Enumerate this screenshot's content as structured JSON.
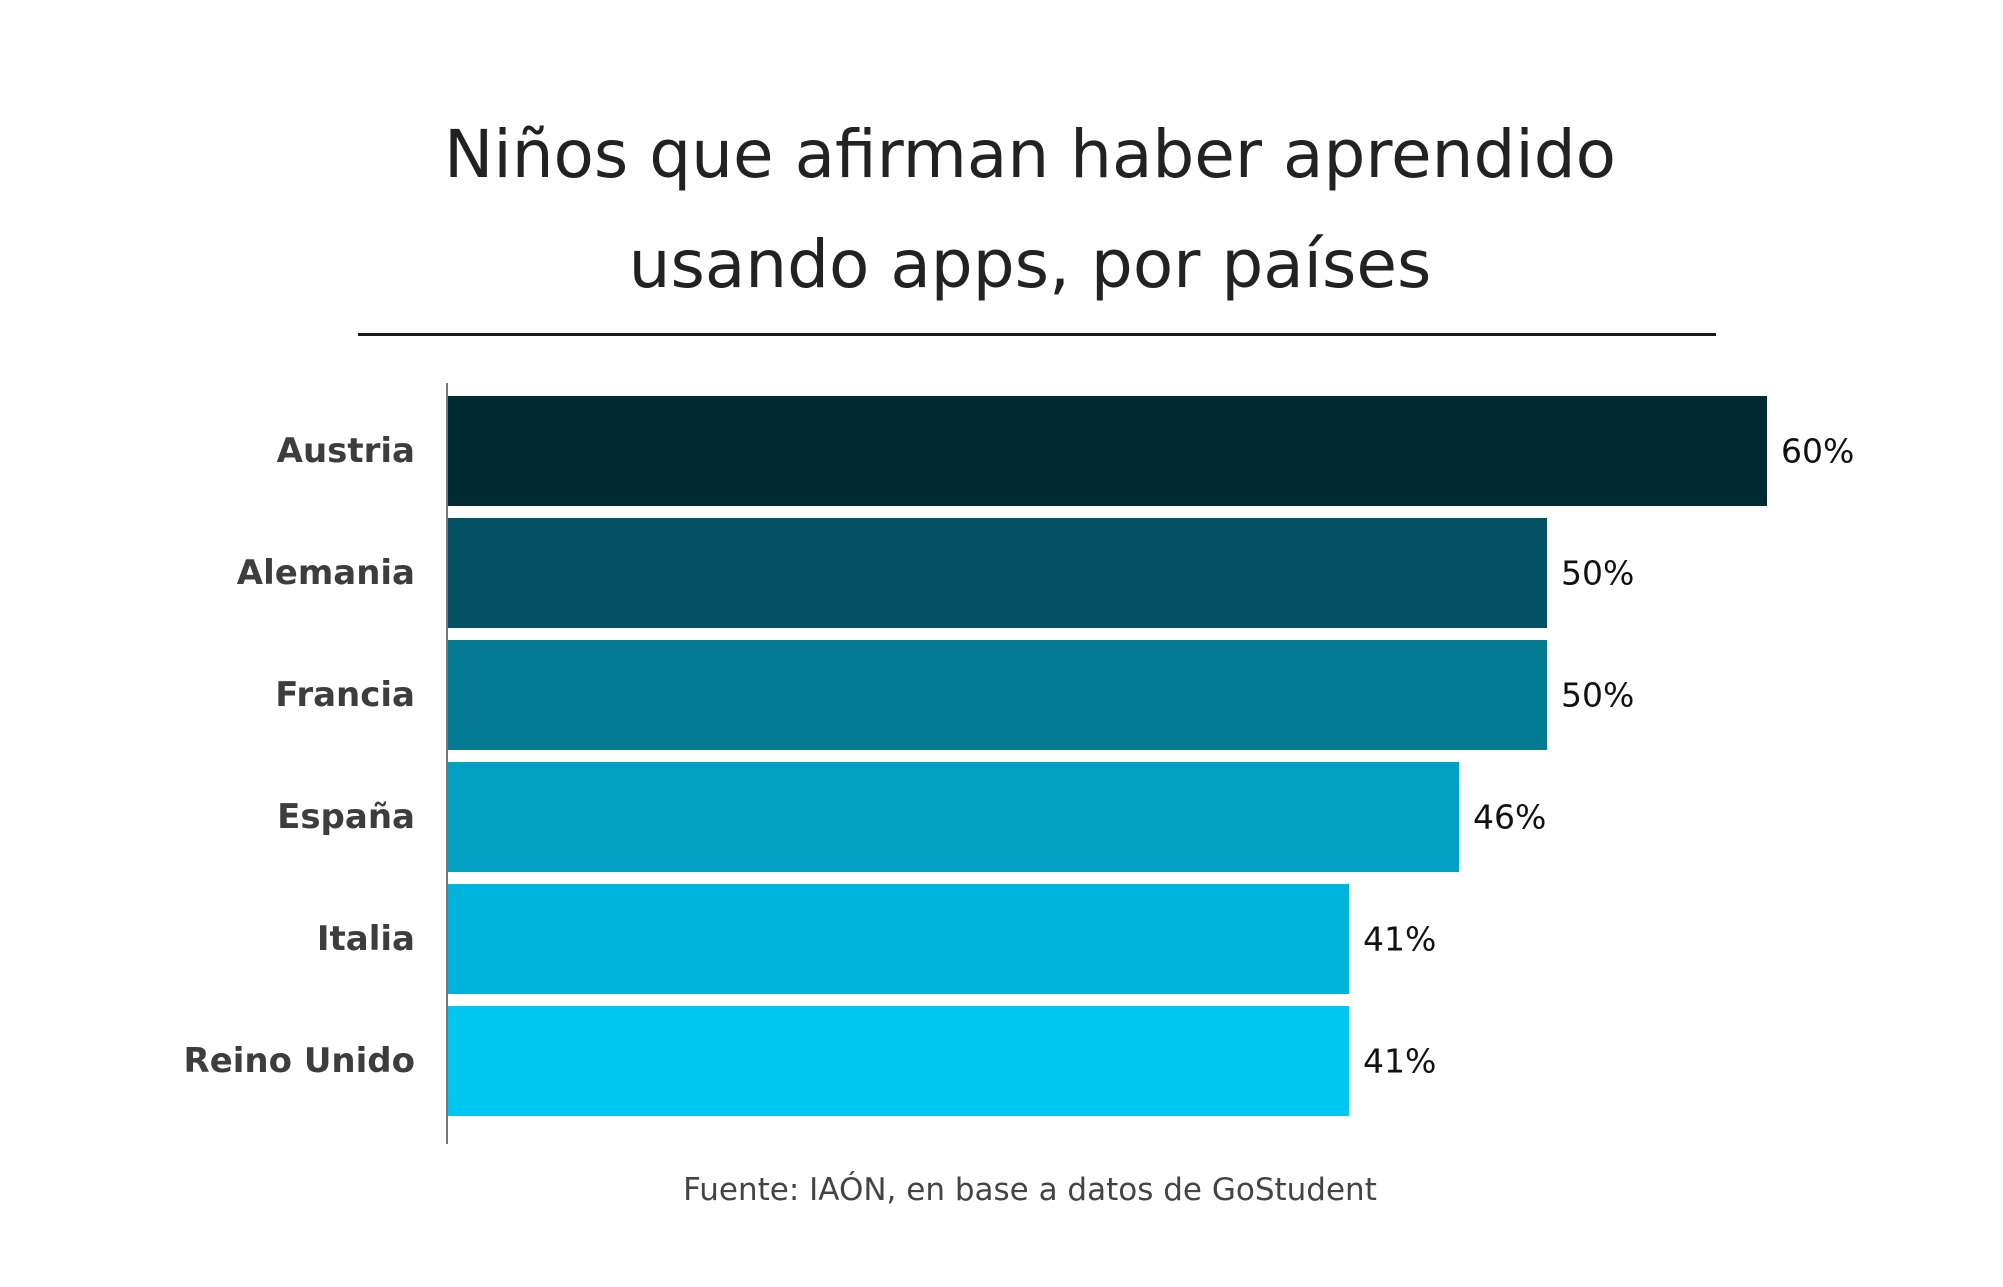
{
  "title": {
    "line1": "Niños que afirman haber aprendido",
    "line2": "usando apps, por países"
  },
  "source": "Fuente: IAÓN, en base a datos de GoStudent",
  "chart_data": {
    "type": "bar",
    "orientation": "horizontal",
    "categories": [
      "Austria",
      "Alemania",
      "Francia",
      "España",
      "Italia",
      "Reino Unido"
    ],
    "values": [
      60,
      50,
      50,
      46,
      41,
      41
    ],
    "value_labels": [
      "60%",
      "50%",
      "50%",
      "46%",
      "41%",
      "41%"
    ],
    "colors": [
      "#022a33",
      "#035063",
      "#027a94",
      "#01a0c3",
      "#01b2db",
      "#00c7f2"
    ],
    "xlim": [
      0,
      60
    ],
    "grid": false,
    "legend": "none"
  }
}
